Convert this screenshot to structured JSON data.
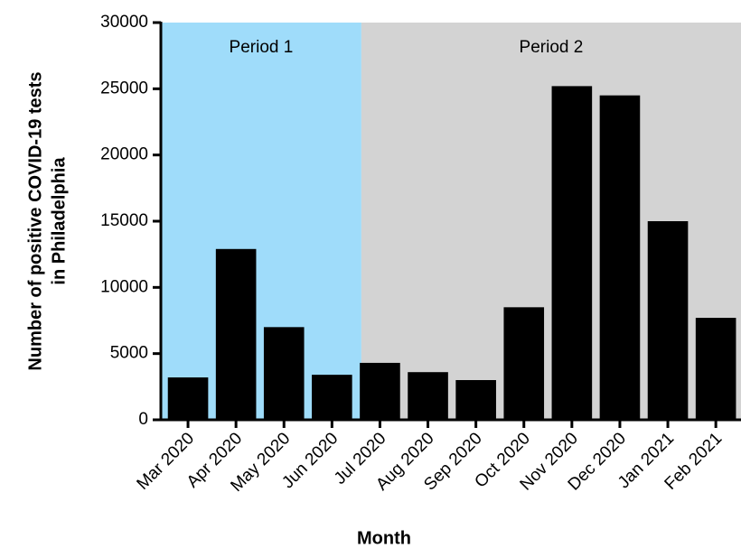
{
  "chart_data": {
    "type": "bar",
    "x_label": "Month",
    "y_label": [
      "Number of positive COVID-19 tests",
      "in Philadelphia"
    ],
    "categories": [
      "Mar 2020",
      "Apr 2020",
      "May 2020",
      "Jun 2020",
      "Jul 2020",
      "Aug 2020",
      "Sep 2020",
      "Oct 2020",
      "Nov 2020",
      "Dec 2020",
      "Jan 2021",
      "Feb 2021"
    ],
    "values": [
      3200,
      12900,
      7000,
      3400,
      4300,
      3600,
      3000,
      8500,
      25200,
      24500,
      15000,
      7700
    ],
    "color": "#000000",
    "ylim": [
      0,
      30000
    ],
    "yticks": [
      0,
      5000,
      10000,
      15000,
      20000,
      25000,
      30000
    ],
    "periods": [
      {
        "label": "Period 1",
        "start": "Mar 2020",
        "end": "Jun 2020",
        "color": "#9fdcfa"
      },
      {
        "label": "Period 2",
        "start": "Jul 2020",
        "end": "Feb 2021",
        "color": "#d3d3d3"
      }
    ]
  }
}
